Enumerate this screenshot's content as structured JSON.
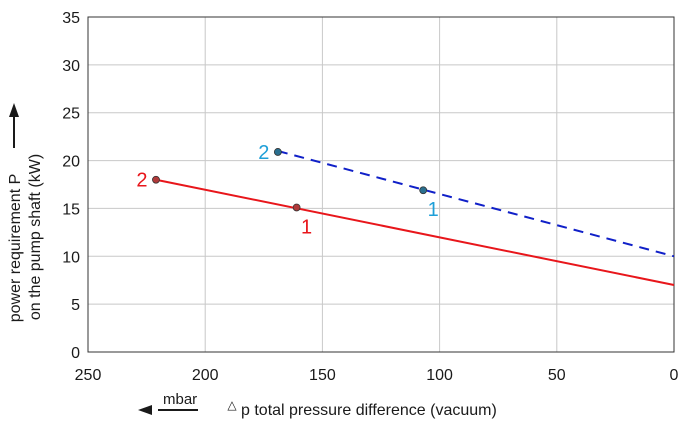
{
  "chart_data": {
    "type": "line",
    "xlabel": "p total pressure difference (vacuum)",
    "xlabel_symbol": "△",
    "xunit": "mbar",
    "ylabel_lines": [
      "power requirement P",
      "on the pump shaft (kW)"
    ],
    "xlim": [
      250,
      0
    ],
    "ylim": [
      0,
      35
    ],
    "x_ticks": [
      250,
      200,
      150,
      100,
      50,
      0
    ],
    "y_ticks": [
      0,
      5,
      10,
      15,
      20,
      25,
      30,
      35
    ],
    "x_reversed": true,
    "grid": true,
    "colors": {
      "red": "#e8161b",
      "blue": "#1020c8",
      "cyan_label": "#1e9fd8",
      "marker_red": "#b03a3a",
      "marker_blue": "#2a6f8f"
    },
    "series": [
      {
        "color": "red",
        "style": "solid",
        "x": [
          221,
          0
        ],
        "y": [
          18,
          7
        ],
        "points": [
          {
            "label": "1",
            "x": 161,
            "y": 15.1
          },
          {
            "label": "2",
            "x": 221,
            "y": 18
          }
        ]
      },
      {
        "color": "blue",
        "style": "dashed",
        "x": [
          169,
          0
        ],
        "y": [
          21,
          10
        ],
        "points": [
          {
            "label": "1",
            "x": 107,
            "y": 16.9
          },
          {
            "label": "2",
            "x": 169,
            "y": 20.9
          }
        ]
      }
    ]
  }
}
